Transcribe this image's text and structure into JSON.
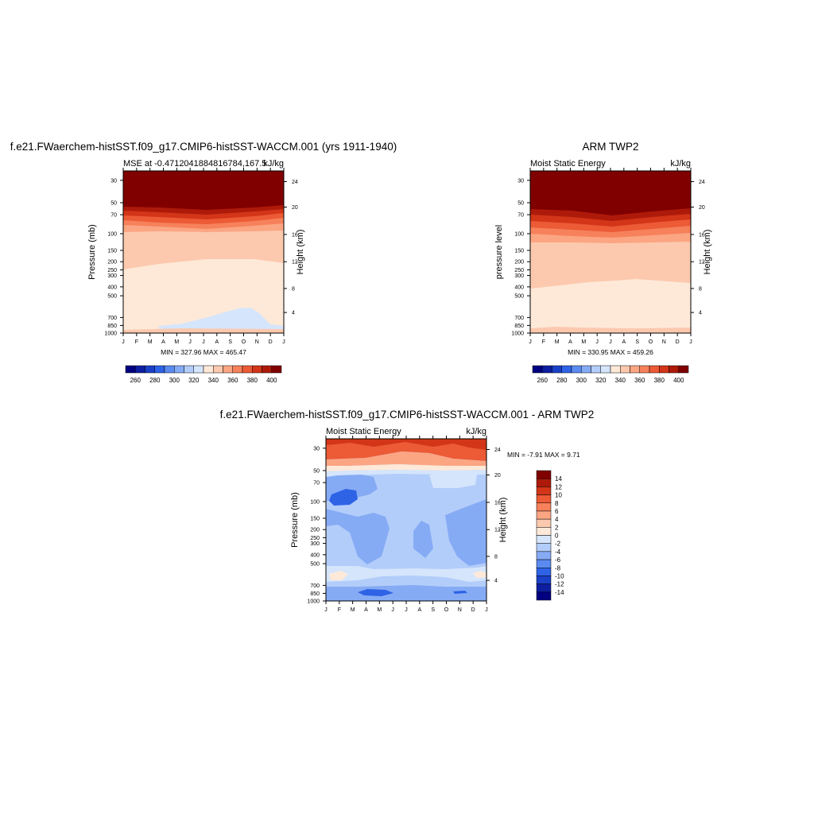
{
  "chart_data": [
    {
      "type": "heatmap",
      "title": "f.e21.FWaerchem-histSST.f09_g17.CMIP6-histSST-WACCM.001 (yrs 1911-1940)",
      "subtitle_left": "MSE at -0.4712041884816784,167.5",
      "subtitle_right": "kJ/kg",
      "xlabel": "",
      "ylabel": "Pressure (mb)",
      "ylabel_right": "Height (km)",
      "x": [
        "J",
        "F",
        "M",
        "A",
        "M",
        "J",
        "J",
        "A",
        "S",
        "O",
        "N",
        "D",
        "J"
      ],
      "y_ticks": [
        "30",
        "50",
        "70",
        "100",
        "150",
        "200",
        "250",
        "300",
        "400",
        "500",
        "700",
        "850",
        "1000"
      ],
      "y_right_ticks": [
        "24",
        "20",
        "16",
        "12",
        "8",
        "4"
      ],
      "stats": "MIN = 327.96 MAX = 465.47",
      "colorbar_labels": [
        "260",
        "280",
        "300",
        "320",
        "340",
        "360",
        "380",
        "400"
      ],
      "colorbar_colors": [
        "#000080",
        "#0d1fa0",
        "#1a40c8",
        "#2e63e6",
        "#5b8bf0",
        "#86abf5",
        "#b3cdfa",
        "#d5e5fc",
        "#fee9d8",
        "#fcc9ae",
        "#fba583",
        "#f6815b",
        "#ec5a36",
        "#d33518",
        "#ae1a0a",
        "#800000"
      ],
      "dominant_values": [
        {
          "region": "upper levels (30-50 mb)",
          "value": "above 400"
        },
        {
          "region": "100-200 mb",
          "value": "340-350"
        },
        {
          "region": "200-850 mb",
          "value": "330-340"
        },
        {
          "region": "700-850 mb, Jul-Nov",
          "value": "320-330"
        }
      ]
    },
    {
      "type": "heatmap",
      "title": "ARM TWP2",
      "subtitle_left": "Moist Static Energy",
      "subtitle_right": "kJ/kg",
      "ylabel": "pressure level",
      "ylabel_right": "Height (km)",
      "x": [
        "J",
        "F",
        "M",
        "A",
        "M",
        "J",
        "J",
        "A",
        "S",
        "O",
        "N",
        "D",
        "J"
      ],
      "y_ticks": [
        "30",
        "50",
        "70",
        "100",
        "150",
        "200",
        "250",
        "300",
        "400",
        "500",
        "700",
        "850",
        "1000"
      ],
      "y_right_ticks": [
        "24",
        "20",
        "16",
        "12",
        "8",
        "4"
      ],
      "stats": "MIN = 330.95 MAX = 459.26",
      "colorbar_labels": [
        "260",
        "280",
        "300",
        "320",
        "340",
        "360",
        "380",
        "400"
      ],
      "dominant_values": [
        {
          "region": "upper levels (30-50 mb)",
          "value": "above 400"
        },
        {
          "region": "150-350 mb",
          "value": "340-350"
        },
        {
          "region": "400-850 mb",
          "value": "330-340"
        }
      ]
    },
    {
      "type": "heatmap",
      "title": "f.e21.FWaerchem-histSST.f09_g17.CMIP6-histSST-WACCM.001 - ARM TWP2",
      "subtitle_left": "Moist Static Energy",
      "subtitle_right": "kJ/kg",
      "ylabel": "Pressure (mb)",
      "ylabel_right": "Height (km)",
      "x": [
        "J",
        "F",
        "M",
        "A",
        "M",
        "J",
        "J",
        "A",
        "S",
        "O",
        "N",
        "D",
        "J"
      ],
      "y_ticks": [
        "30",
        "50",
        "70",
        "100",
        "150",
        "200",
        "250",
        "300",
        "400",
        "500",
        "700",
        "850",
        "1000"
      ],
      "y_right_ticks": [
        "24",
        "20",
        "16",
        "12",
        "8",
        "4"
      ],
      "stats": "MIN =  -7.91 MAX =   9.71",
      "colorbar_labels": [
        "14",
        "12",
        "10",
        "8",
        "6",
        "4",
        "2",
        "0",
        "-2",
        "-4",
        "-6",
        "-8",
        "-10",
        "-12",
        "-14"
      ],
      "colorbar_colors": [
        "#800000",
        "#ae1a0a",
        "#d33518",
        "#ec5a36",
        "#f6815b",
        "#fba583",
        "#fcc9ae",
        "#fee9d8",
        "#d5e5fc",
        "#b3cdfa",
        "#86abf5",
        "#5b8bf0",
        "#2e63e6",
        "#1a40c8",
        "#0d1fa0",
        "#000080"
      ],
      "dominant_values": [
        {
          "region": "30 mb",
          "value": "2 to 10"
        },
        {
          "region": "50-850 mb",
          "value": "-2 to -4"
        },
        {
          "region": "100 mb, Jan-Mar",
          "value": "-6"
        }
      ]
    }
  ]
}
